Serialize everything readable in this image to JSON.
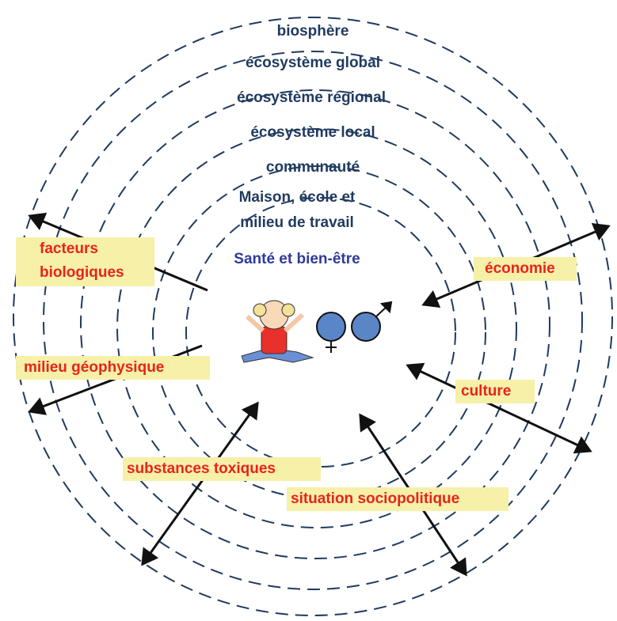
{
  "rings": [
    "biosphère",
    "écosystème global",
    "écosystème régional",
    "écosystème local",
    "communauté"
  ],
  "center": {
    "setting_line1": "Maison, école et",
    "setting_line2": "milieu de travail",
    "focus": "Santé et bien-être"
  },
  "factors": [
    "facteurs",
    "biologiques",
    "économie",
    "milieu géophysique",
    "culture",
    "substances toxiques",
    "situation sociopolitique"
  ]
}
